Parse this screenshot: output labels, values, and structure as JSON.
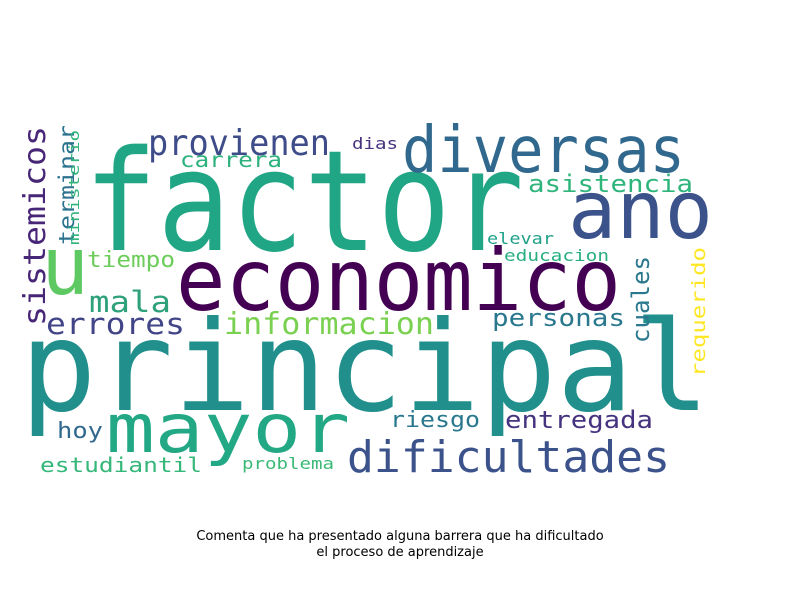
{
  "words": [
    {
      "text": "factor",
      "color": "#21a685"
    },
    {
      "text": "principal",
      "color": "#21908d"
    },
    {
      "text": "economico",
      "color": "#440154"
    },
    {
      "text": "ano",
      "color": "#3b528b"
    },
    {
      "text": "diversas",
      "color": "#31688e"
    },
    {
      "text": "mayor",
      "color": "#22a884"
    },
    {
      "text": "dificultades",
      "color": "#3b528b"
    },
    {
      "text": "u",
      "color": "#5ec962"
    },
    {
      "text": "provienen",
      "color": "#3e4c8a"
    },
    {
      "text": "sistemicos",
      "color": "#482677"
    },
    {
      "text": "informacion",
      "color": "#7ad151"
    },
    {
      "text": "mala",
      "color": "#2ea17a"
    },
    {
      "text": "errores",
      "color": "#414487"
    },
    {
      "text": "asistencia",
      "color": "#2fb47c"
    },
    {
      "text": "personas",
      "color": "#2a788e"
    },
    {
      "text": "cuales",
      "color": "#2a788e"
    },
    {
      "text": "entregada",
      "color": "#46337f"
    },
    {
      "text": "carrera",
      "color": "#2db27d"
    },
    {
      "text": "terminar",
      "color": "#2c728e"
    },
    {
      "text": "tiempo",
      "color": "#6ccd5a"
    },
    {
      "text": "riesgo",
      "color": "#2a788e"
    },
    {
      "text": "estudiantil",
      "color": "#35b779"
    },
    {
      "text": "hoy",
      "color": "#31688e"
    },
    {
      "text": "requerido",
      "color": "#fde725"
    },
    {
      "text": "problema",
      "color": "#3aba76"
    },
    {
      "text": "educacion",
      "color": "#28ae80"
    },
    {
      "text": "elevar",
      "color": "#1fa088"
    },
    {
      "text": "dias",
      "color": "#46337f"
    },
    {
      "text": "ministerio",
      "color": "#31b57b"
    }
  ],
  "caption": {
    "line1": "Comenta que ha presentado alguna barrera que ha dificultado",
    "line2": "el proceso de aprendizaje"
  }
}
